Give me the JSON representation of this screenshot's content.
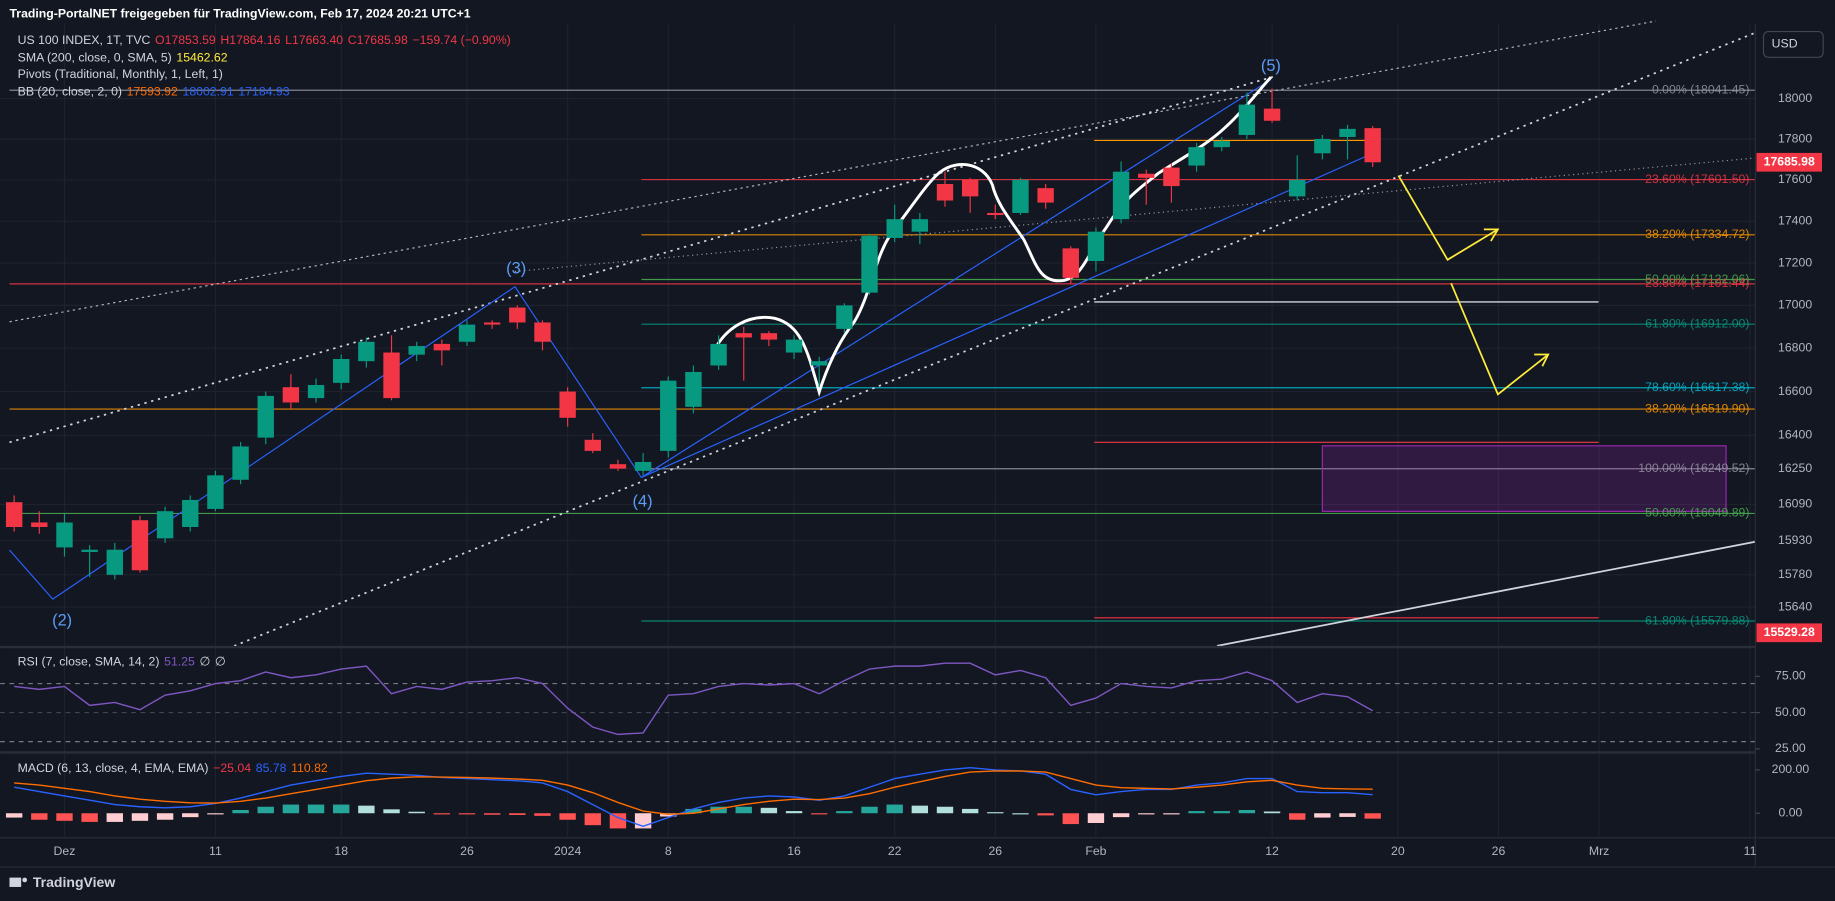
{
  "header": {
    "watermark": "Trading-PortalNET freigegeben für TradingView.com, Feb 17, 2024 20:21 UTC+1",
    "currency": "USD",
    "brand": "TradingView"
  },
  "chart_data": {
    "type": "candlestick",
    "log": true,
    "grid": true,
    "up_color": "#089981",
    "down_color": "#f23645",
    "legend": [
      [
        {
          "text": "US 100 INDEX, 1T, TVC",
          "color": "#d1d4dc"
        },
        {
          "text": "O17853.59",
          "color": "#f23645"
        },
        {
          "text": "H17864.16",
          "color": "#f23645"
        },
        {
          "text": "L17663.40",
          "color": "#f23645"
        },
        {
          "text": "C17685.98",
          "color": "#f23645"
        },
        {
          "text": "−159.74 (−0.90%)",
          "color": "#f23645"
        }
      ],
      [
        {
          "text": "SMA (200, close, 0, SMA, 5)",
          "color": "#d1d4dc"
        },
        {
          "text": "15462.62",
          "color": "#ffeb3b"
        }
      ],
      [
        {
          "text": "Pivots (Traditional, Monthly, 1, Left, 1)",
          "color": "#d1d4dc"
        }
      ],
      [
        {
          "text": "BB (20, close, 2, 0)",
          "color": "#d1d4dc"
        },
        {
          "text": "17593.92",
          "color": "#ff6d00"
        },
        {
          "text": "18002.91",
          "color": "#2962ff"
        },
        {
          "text": "17184.93",
          "color": "#2962ff"
        }
      ]
    ],
    "annotations": [
      "(2)",
      "(3)",
      "(4)",
      "(5)"
    ],
    "categories": [
      null,
      null,
      "Dez",
      null,
      null,
      null,
      null,
      null,
      "11",
      null,
      null,
      null,
      null,
      "18",
      null,
      null,
      null,
      null,
      "26",
      null,
      null,
      null,
      "2024",
      null,
      null,
      null,
      "8",
      null,
      null,
      null,
      null,
      "16",
      null,
      null,
      null,
      "22",
      null,
      null,
      null,
      "26",
      null,
      null,
      null,
      "Feb",
      null,
      null,
      null,
      null,
      null,
      null,
      "12",
      null,
      null,
      null,
      null,
      "20",
      null,
      null,
      null,
      "26",
      null,
      null,
      null,
      "Mrz",
      null,
      null,
      null,
      null,
      null,
      "11"
    ],
    "open": [
      16100,
      16010,
      15900,
      15880,
      15780,
      16020,
      15940,
      15990,
      16070,
      16200,
      16390,
      16620,
      16570,
      16640,
      16740,
      16780,
      16770,
      16820,
      16830,
      16920,
      16990,
      16920,
      16600,
      16380,
      16270,
      16240,
      16330,
      16530,
      16720,
      16870,
      16870,
      16780,
      16720,
      16890,
      17060,
      17320,
      17350,
      17580,
      17600,
      17440,
      17440,
      17560,
      17270,
      17210,
      17410,
      17630,
      17660,
      17670,
      17760,
      17820,
      17950,
      17520,
      17730,
      17810,
      17853.59,
      null,
      null,
      null,
      null,
      null,
      null,
      null,
      null,
      null,
      null,
      null,
      null,
      null,
      null,
      null
    ],
    "high": [
      16130,
      16060,
      16050,
      15910,
      15920,
      16040,
      16080,
      16130,
      16240,
      16370,
      16600,
      16680,
      16660,
      16770,
      16850,
      16860,
      16830,
      16840,
      16930,
      16930,
      17000,
      16930,
      16620,
      16410,
      16290,
      16320,
      16670,
      16720,
      16860,
      16900,
      16880,
      16860,
      16760,
      17010,
      17340,
      17480,
      17440,
      17640,
      17610,
      17480,
      17610,
      17580,
      17280,
      17370,
      17690,
      17650,
      17680,
      17780,
      17810,
      18030,
      18050,
      17720,
      17820,
      17870,
      17864.16,
      null,
      null,
      null,
      null,
      null,
      null,
      null,
      null,
      null,
      null,
      null,
      null,
      null,
      null,
      null
    ],
    "low": [
      15970,
      15960,
      15860,
      15770,
      15760,
      15790,
      15920,
      15970,
      16060,
      16180,
      16360,
      16520,
      16550,
      16610,
      16710,
      16560,
      16740,
      16720,
      16810,
      16890,
      16890,
      16790,
      16440,
      16320,
      16240,
      16220,
      16300,
      16500,
      16700,
      16650,
      16810,
      16750,
      16620,
      16870,
      17050,
      17300,
      17290,
      17470,
      17440,
      17410,
      17430,
      17460,
      17100,
      17160,
      17390,
      17480,
      17490,
      17640,
      17740,
      17800,
      17880,
      17500,
      17700,
      17700,
      17663.4,
      null,
      null,
      null,
      null,
      null,
      null,
      null,
      null,
      null,
      null,
      null,
      null,
      null,
      null,
      null
    ],
    "close": [
      15990,
      15990,
      16010,
      15890,
      15890,
      15800,
      16060,
      16110,
      16220,
      16350,
      16580,
      16550,
      16630,
      16750,
      16830,
      16570,
      16810,
      16790,
      16910,
      16910,
      16920,
      16830,
      16480,
      16330,
      16250,
      16280,
      16650,
      16690,
      16820,
      16850,
      16840,
      16840,
      16740,
      17000,
      17330,
      17410,
      17410,
      17500,
      17520,
      17430,
      17600,
      17490,
      17130,
      17350,
      17640,
      17610,
      17570,
      17760,
      17790,
      17970,
      17890,
      17600,
      17800,
      17850,
      17685.98,
      null,
      null,
      null,
      null,
      null,
      null,
      null,
      null,
      null,
      null,
      null,
      null,
      null,
      null,
      null
    ],
    "ylim": [
      15473,
      18378
    ],
    "yticks": [
      18000,
      17800,
      17600,
      17400,
      17200,
      17000,
      16800,
      16600,
      16400,
      16250,
      16090,
      15930,
      15780,
      15640
    ],
    "levels": [
      {
        "label": "0.00% (18041.45)",
        "value": 18041.45,
        "color": "#9598a1"
      },
      {
        "label": "23.60% (17601.50)",
        "value": 17601.5,
        "color": "#f23645"
      },
      {
        "label": "38.20% (17334.72)",
        "value": 17334.72,
        "color": "#ff9800"
      },
      {
        "label": "50.00% (17122.06)",
        "value": 17122.06,
        "color": "#4caf50"
      },
      {
        "label": "23.60% (17101.44)",
        "value": 17101.44,
        "color": "#f23645"
      },
      {
        "label": "61.80% (16912.00)",
        "value": 16912,
        "color": "#089981"
      },
      {
        "label": "78.60% (16617.38)",
        "value": 16617.38,
        "color": "#00bcd4"
      },
      {
        "label": "38.20% (16519.90)",
        "value": 16519.9,
        "color": "#ff9800"
      },
      {
        "label": "100.00% (16249.52)",
        "value": 16249.52,
        "color": "#9598a1"
      },
      {
        "label": "50.00% (16049.89)",
        "value": 16049.89,
        "color": "#4caf50"
      },
      {
        "label": "61.80% (15579.88)",
        "value": 15579.88,
        "color": "#089981"
      }
    ],
    "price_labels": [
      {
        "value": 17685.98,
        "color": "#f23645"
      },
      {
        "value": 15529.28,
        "color": "#f23645"
      }
    ],
    "rsi": {
      "legend": [
        [
          {
            "text": "RSI (7, close, SMA, 14, 2)",
            "color": "#d1d4dc"
          },
          {
            "text": "51.25",
            "color": "#7e57c2"
          },
          {
            "text": "∅",
            "color": "#d1d4dc"
          },
          {
            "text": "∅",
            "color": "#d1d4dc"
          }
        ]
      ],
      "color": "#7e57c2",
      "ylim": [
        23.4,
        93.5
      ],
      "yticks": [
        {
          "value": 75,
          "label": "75.00"
        },
        {
          "value": 50,
          "label": "50.00"
        },
        {
          "value": 25,
          "label": "25.00"
        }
      ],
      "bands": [
        70,
        50,
        30
      ],
      "values": [
        68,
        66,
        68,
        55,
        57,
        52,
        62,
        65,
        70,
        72,
        78,
        74,
        76,
        80,
        82,
        63,
        68,
        66,
        71,
        72,
        74,
        70,
        53,
        40,
        35,
        36,
        62,
        63,
        68,
        70,
        69,
        70,
        63,
        72,
        80,
        82,
        82,
        84,
        84,
        76,
        79,
        74,
        55,
        60,
        70,
        68,
        67,
        72,
        73,
        78,
        72,
        57,
        63,
        61,
        51.25,
        null,
        null,
        null,
        null,
        null,
        null,
        null,
        null,
        null,
        null,
        null,
        null,
        null,
        null,
        null
      ]
    },
    "macd": {
      "legend": [
        [
          {
            "text": "MACD (6, 13, close, 4, EMA, EMA)",
            "color": "#d1d4dc"
          },
          {
            "text": "−25.04",
            "color": "#f23645"
          },
          {
            "text": "85.78",
            "color": "#2962ff"
          },
          {
            "text": "110.82",
            "color": "#ff6d00"
          }
        ]
      ],
      "ylim": [
        -108,
        270
      ],
      "yticks": [
        {
          "value": 200,
          "label": "200.00"
        },
        {
          "value": 0,
          "label": "0.00"
        }
      ],
      "hist_colors": [
        "#26a69a",
        "#b2dfdb",
        "#ff5252",
        "#ffcdd2"
      ],
      "hist": [
        -20,
        -30,
        -35,
        -40,
        -40,
        -35,
        -30,
        -18,
        -2,
        15,
        30,
        40,
        40,
        40,
        35,
        18,
        7,
        -2,
        -5,
        -7,
        -8,
        -12,
        -30,
        -55,
        -70,
        -70,
        -15,
        20,
        30,
        30,
        25,
        10,
        -3,
        10,
        30,
        40,
        35,
        30,
        20,
        5,
        0,
        -10,
        -50,
        -45,
        -18,
        -5,
        -2,
        10,
        10,
        15,
        8,
        -30,
        -20,
        -17,
        -25.04,
        null,
        null,
        null,
        null,
        null,
        null,
        null,
        null,
        null,
        null,
        null,
        null,
        null,
        null,
        null
      ],
      "series": [
        {
          "name": "MACD",
          "color": "#2962ff",
          "values": [
            120,
            100,
            80,
            60,
            40,
            30,
            25,
            30,
            45,
            70,
            100,
            130,
            150,
            170,
            185,
            180,
            175,
            165,
            160,
            155,
            150,
            140,
            100,
            40,
            -20,
            -60,
            -20,
            20,
            50,
            70,
            80,
            75,
            60,
            80,
            120,
            160,
            180,
            200,
            210,
            200,
            195,
            180,
            110,
            85,
            100,
            110,
            110,
            130,
            140,
            160,
            160,
            100,
            95,
            95,
            85.78,
            null,
            null,
            null,
            null,
            null,
            null,
            null,
            null,
            null,
            null,
            null,
            null,
            null,
            null,
            null
          ]
        },
        {
          "name": "Signal",
          "color": "#ff6d00",
          "values": [
            140,
            130,
            115,
            100,
            80,
            65,
            55,
            48,
            47,
            55,
            70,
            90,
            110,
            130,
            150,
            162,
            168,
            167,
            165,
            162,
            158,
            152,
            130,
            95,
            50,
            10,
            -5,
            0,
            20,
            40,
            55,
            65,
            63,
            70,
            90,
            120,
            145,
            170,
            190,
            195,
            195,
            190,
            160,
            130,
            118,
            115,
            112,
            120,
            130,
            145,
            152,
            130,
            115,
            112,
            110.82,
            null,
            null,
            null,
            null,
            null,
            null,
            null,
            null,
            null,
            null,
            null,
            null,
            null,
            null,
            null
          ]
        }
      ]
    }
  }
}
